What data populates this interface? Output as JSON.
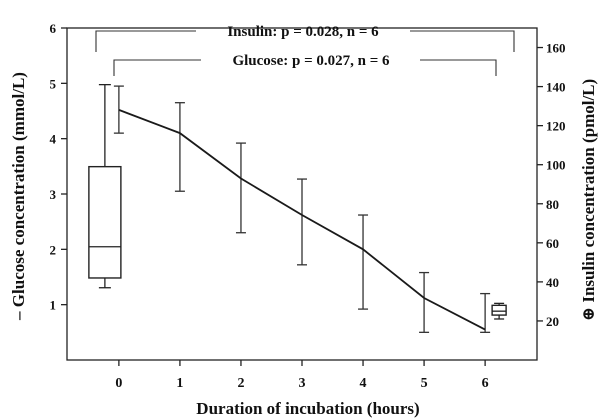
{
  "chart_data": {
    "type": "line",
    "xlabel": "Duration of incubation (hours)",
    "x": [
      0,
      1,
      2,
      3,
      4,
      5,
      6
    ],
    "xticks": [
      "0",
      "1",
      "2",
      "3",
      "4",
      "5",
      "6"
    ],
    "xlim": [
      -0.85,
      6.85
    ],
    "left_axis": {
      "label": "– Glucose concentration (mmol/L)",
      "ylim": [
        0,
        6
      ],
      "ticks": [
        "1",
        "2",
        "3",
        "4",
        "5",
        "6"
      ]
    },
    "right_axis": {
      "label": "⊕ Insulin concentration (pmol/L)",
      "ylim": [
        0,
        170
      ],
      "ticks": [
        "20",
        "40",
        "60",
        "80",
        "100",
        "120",
        "140",
        "160"
      ]
    },
    "glucose": {
      "mean": [
        4.52,
        4.1,
        3.28,
        2.62,
        2.0,
        1.12,
        0.55
      ],
      "lower": [
        4.1,
        3.05,
        2.3,
        1.72,
        0.92,
        0.5,
        0.5
      ],
      "upper": [
        4.95,
        4.65,
        3.92,
        3.27,
        2.62,
        1.58,
        1.2
      ]
    },
    "insulin_boxes": [
      {
        "x": 0,
        "min": 37,
        "q1": 42,
        "median": 58,
        "q3": 99,
        "max": 141
      },
      {
        "x": 6,
        "min": 21,
        "q1": 23,
        "median": 25,
        "q3": 28,
        "max": 29
      }
    ],
    "annotations": {
      "insulin": "Insulin: p = 0.028, n = 6",
      "glucose": "Glucose: p = 0.027, n = 6"
    },
    "legend": "none",
    "grid": false
  }
}
